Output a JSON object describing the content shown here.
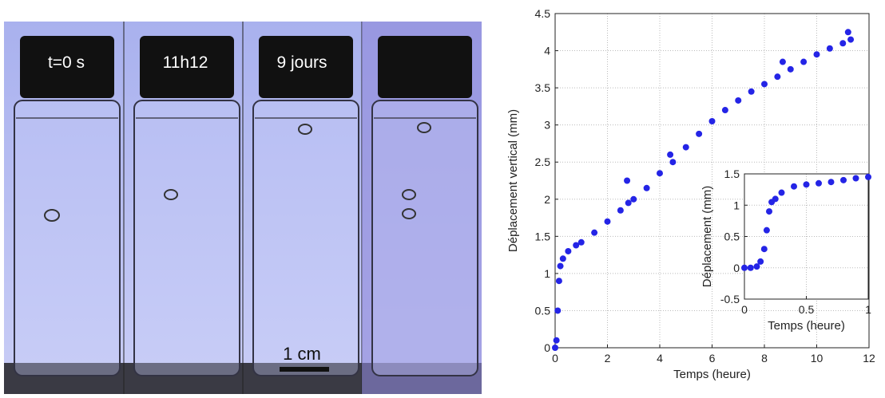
{
  "photo": {
    "labels": [
      "t=0 s",
      "11h12",
      "9 jours"
    ],
    "scale_bar": "1 cm"
  },
  "chart_data": [
    {
      "type": "scatter",
      "xlabel": "Temps (heure)",
      "ylabel": "Déplacement vertical (mm)",
      "color": "#2424e6",
      "grid": true,
      "xlim": [
        0,
        12
      ],
      "xticks": [
        0,
        2,
        4,
        6,
        8,
        10,
        12
      ],
      "ylim": [
        0,
        4.5
      ],
      "yticks": [
        0,
        0.5,
        1,
        1.5,
        2,
        2.5,
        3,
        3.5,
        4,
        4.5
      ],
      "x": [
        0,
        0.05,
        0.1,
        0.15,
        0.2,
        0.3,
        0.5,
        0.8,
        1,
        1.5,
        2,
        2.5,
        2.75,
        2.8,
        3,
        3.5,
        4,
        4.4,
        4.5,
        5,
        5.5,
        6,
        6.5,
        7,
        7.5,
        8,
        8.5,
        8.7,
        9,
        9.5,
        10,
        10.5,
        11,
        11.2,
        11.3
      ],
      "values": [
        0,
        0.1,
        0.5,
        0.9,
        1.1,
        1.2,
        1.3,
        1.38,
        1.42,
        1.55,
        1.7,
        1.85,
        2.25,
        1.95,
        2.0,
        2.15,
        2.35,
        2.6,
        2.5,
        2.7,
        2.88,
        3.05,
        3.2,
        3.33,
        3.45,
        3.55,
        3.65,
        3.85,
        3.75,
        3.85,
        3.95,
        4.03,
        4.1,
        4.25,
        4.15
      ]
    },
    {
      "type": "scatter",
      "xlabel": "Temps (heure)",
      "ylabel": "Déplacement (mm)",
      "color": "#2424e6",
      "grid": true,
      "xlim": [
        0,
        1
      ],
      "xticks": [
        0,
        0.5,
        1
      ],
      "ylim": [
        -0.5,
        1.5
      ],
      "yticks": [
        -0.5,
        0,
        0.5,
        1,
        1.5
      ],
      "x": [
        0,
        0.05,
        0.1,
        0.13,
        0.16,
        0.18,
        0.2,
        0.22,
        0.25,
        0.3,
        0.4,
        0.5,
        0.6,
        0.7,
        0.8,
        0.9,
        1
      ],
      "values": [
        0,
        0,
        0.02,
        0.1,
        0.3,
        0.6,
        0.9,
        1.05,
        1.1,
        1.2,
        1.3,
        1.33,
        1.35,
        1.37,
        1.4,
        1.43,
        1.45
      ]
    }
  ]
}
